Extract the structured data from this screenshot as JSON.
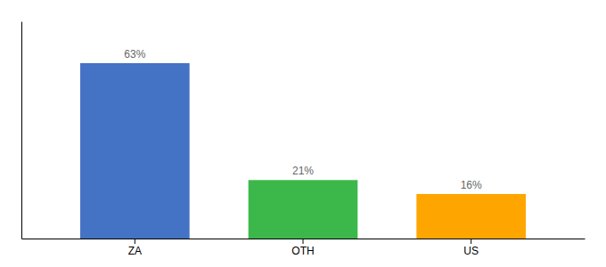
{
  "chart_data": {
    "type": "bar",
    "categories": [
      "ZA",
      "OTH",
      "US"
    ],
    "values": [
      63,
      21,
      16
    ],
    "value_labels": [
      "63%",
      "21%",
      "16%"
    ],
    "colors": [
      "#4472C4",
      "#3CB84A",
      "#FFA500"
    ],
    "ylim": [
      0,
      78
    ],
    "yticks": [],
    "data_labels": true,
    "tick_labels": "x"
  }
}
